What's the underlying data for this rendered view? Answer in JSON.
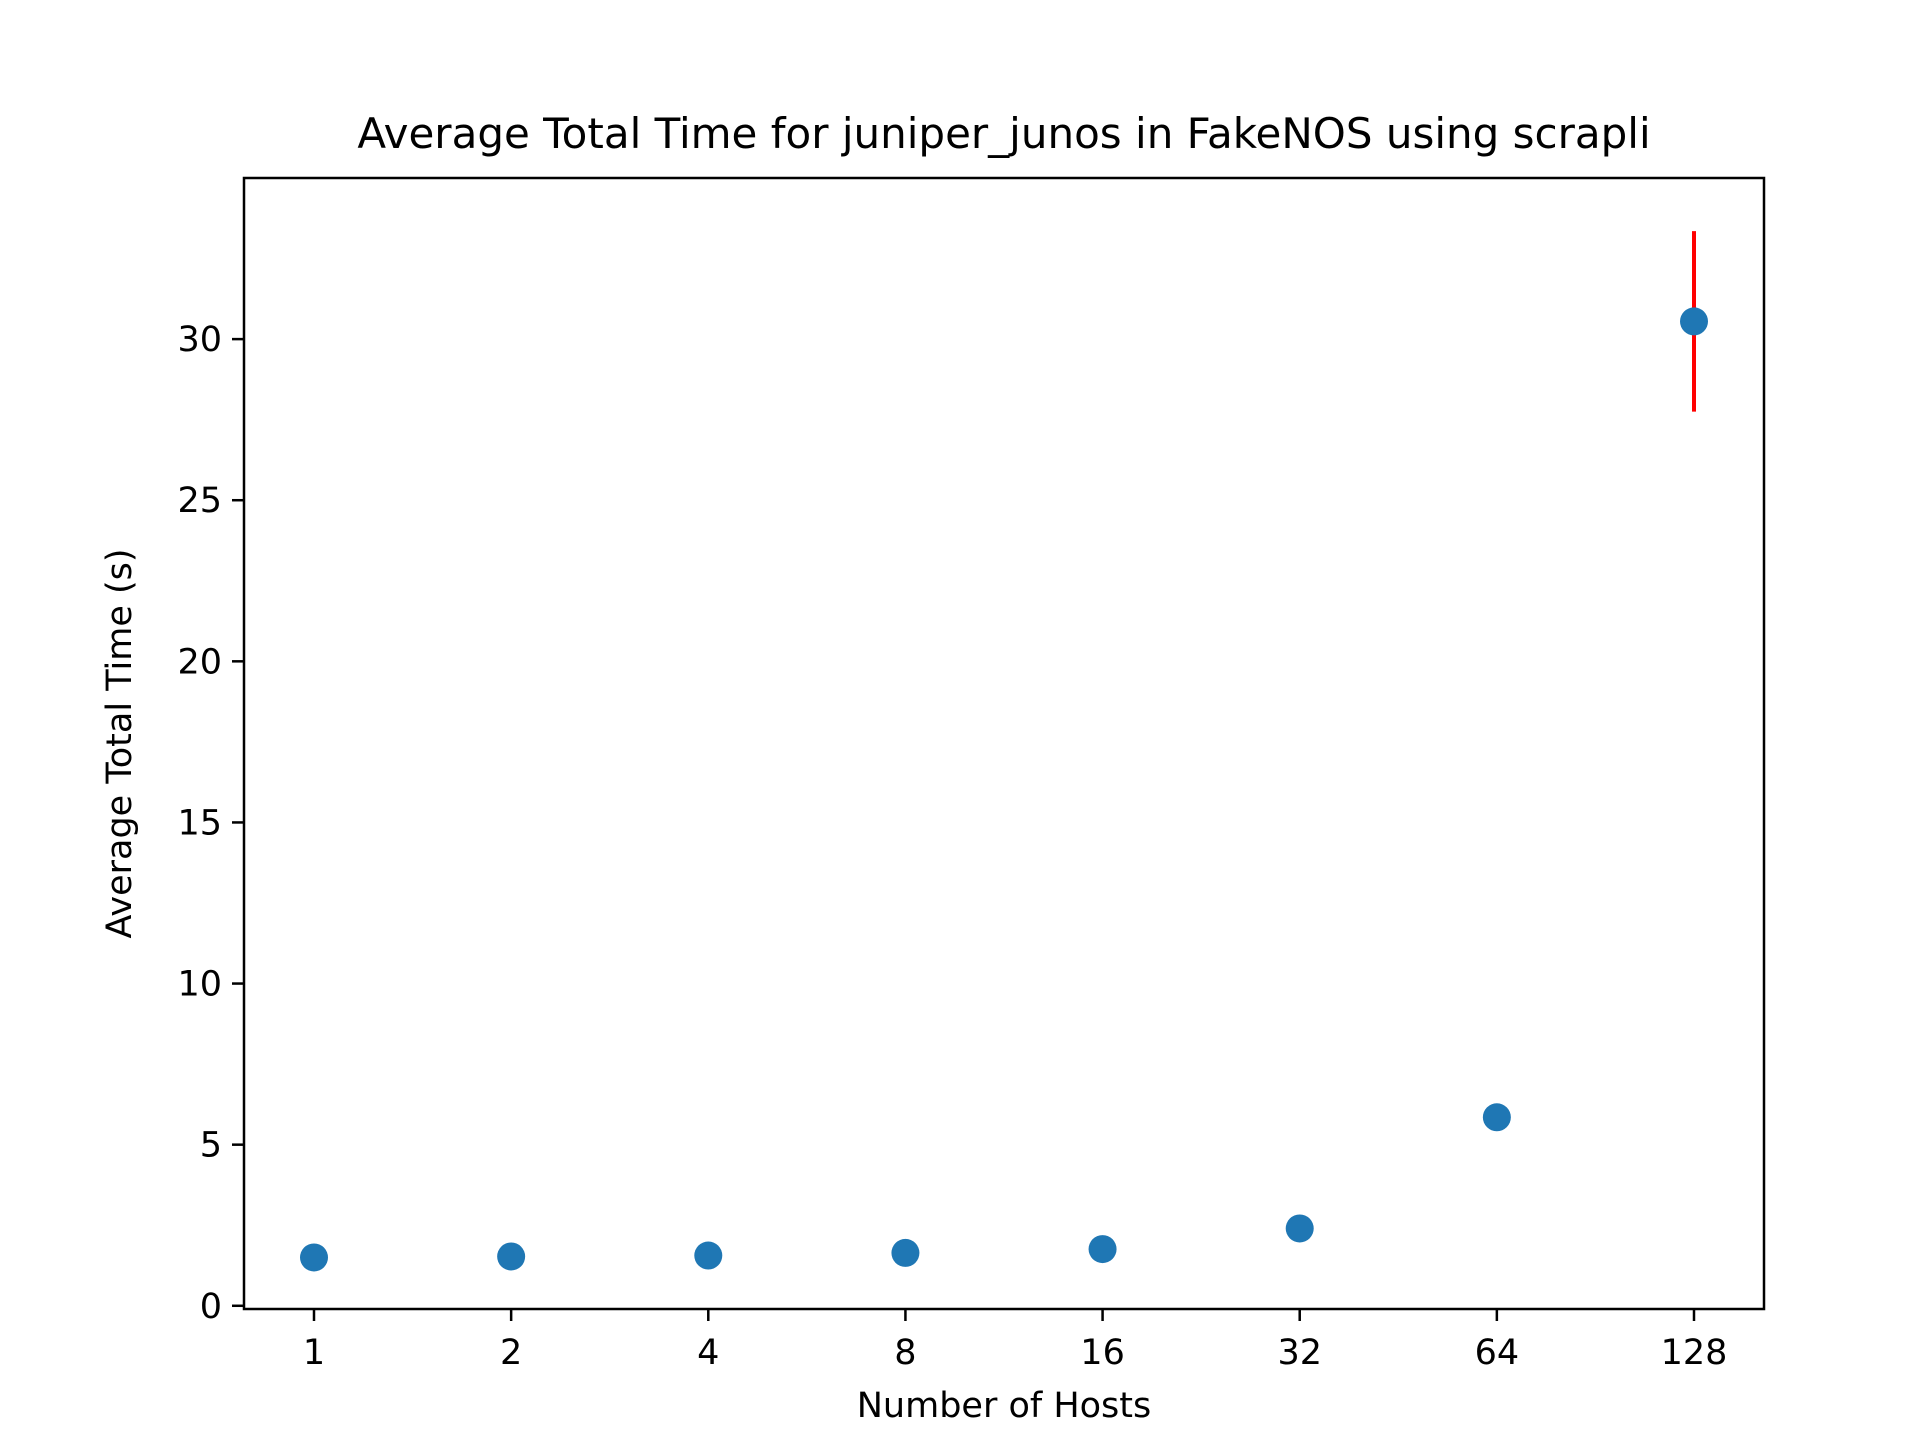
{
  "chart_data": {
    "type": "scatter",
    "title": "Average Total Time for juniper_junos in FakeNOS using scrapli",
    "xlabel": "Number of Hosts",
    "ylabel": "Average Total Time (s)",
    "x_scale": "log2",
    "categories": [
      "1",
      "2",
      "4",
      "8",
      "16",
      "32",
      "64",
      "128"
    ],
    "x": [
      1,
      2,
      4,
      8,
      16,
      32,
      64,
      128
    ],
    "series": [
      {
        "values": [
          1.5,
          1.53,
          1.56,
          1.64,
          1.76,
          2.4,
          5.85,
          30.55
        ],
        "error": [
          0,
          0,
          0,
          0,
          0,
          0,
          0,
          2.8
        ],
        "color": "#1f77b4",
        "error_color": "#ff0000"
      }
    ],
    "yticks": [
      0,
      5,
      10,
      15,
      20,
      25,
      30
    ],
    "ylim": [
      -0.1,
      35
    ],
    "grid": false,
    "legend": "none"
  }
}
